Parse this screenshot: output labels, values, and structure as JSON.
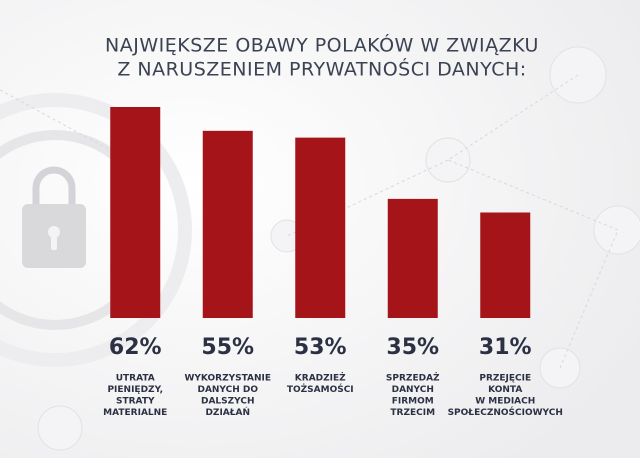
{
  "chart_data": {
    "type": "bar",
    "title": [
      "NAJWIĘKSZE OBAWY POLAKÓW W ZWIĄZKU",
      "Z NARUSZENIEM PRYWATNOŚCI DANYCH:"
    ],
    "categories": [
      [
        "UTRATA",
        "PIENIĘDZY,",
        "STRATY",
        "MATERIALNE"
      ],
      [
        "WYKORZYSTANIE",
        "DANYCH DO",
        "DALSZYCH",
        "DZIAŁAŃ"
      ],
      [
        "KRADZIEŻ",
        "TOŻSAMOŚCI"
      ],
      [
        "SPRZEDAŻ",
        "DANYCH",
        "FIRMOM",
        "TRZECIM"
      ],
      [
        "PRZEJĘCIE",
        "KONTA",
        "W MEDIACH",
        "SPOŁECZNOŚCIOWYCH"
      ]
    ],
    "values": [
      62,
      55,
      53,
      35,
      31
    ],
    "value_labels": [
      "62%",
      "55%",
      "53%",
      "35%",
      "31%"
    ],
    "color": "#a51419"
  }
}
